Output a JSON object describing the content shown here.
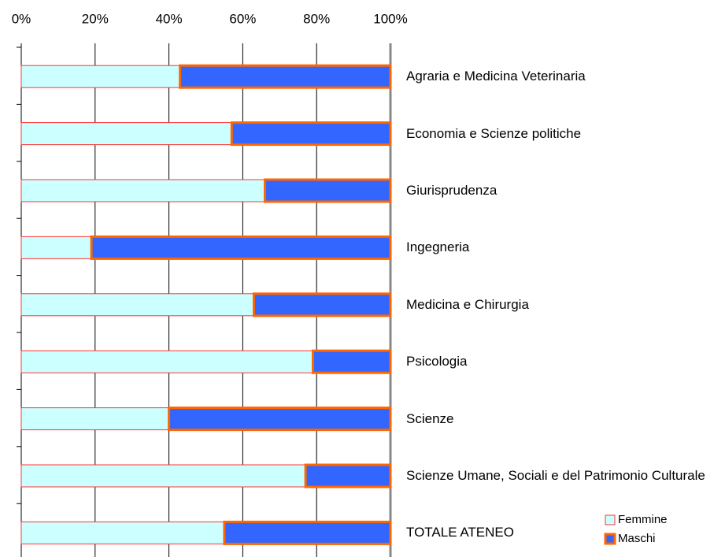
{
  "chart_data": {
    "type": "bar",
    "orientation": "horizontal",
    "stacked": true,
    "categories": [
      "Agraria e Medicina Veterinaria",
      "Economia e Scienze politiche",
      "Giurisprudenza",
      "Ingegneria",
      "Medicina e Chirurgia",
      "Psicologia",
      "Scienze",
      "Scienze Umane, Sociali e del Patrimonio Culturale",
      "TOTALE ATENEO"
    ],
    "series": [
      {
        "name": "Femmine",
        "color": "#ccffff",
        "edge": "#ff3333",
        "values": [
          43,
          57,
          66,
          19,
          63,
          79,
          40,
          77,
          55
        ]
      },
      {
        "name": "Maschi",
        "color": "#3366ff",
        "edge": "#ff6600",
        "values": [
          57,
          43,
          34,
          81,
          37,
          21,
          60,
          23,
          45
        ]
      }
    ],
    "xlim": [
      0,
      100
    ],
    "xticks": [
      {
        "value": 0,
        "label": "0%"
      },
      {
        "value": 20,
        "label": "20%"
      },
      {
        "value": 40,
        "label": "40%"
      },
      {
        "value": 60,
        "label": "60%"
      },
      {
        "value": 80,
        "label": "80%"
      },
      {
        "value": 100,
        "label": "100%"
      }
    ],
    "grid": true,
    "legend": "lower right"
  }
}
